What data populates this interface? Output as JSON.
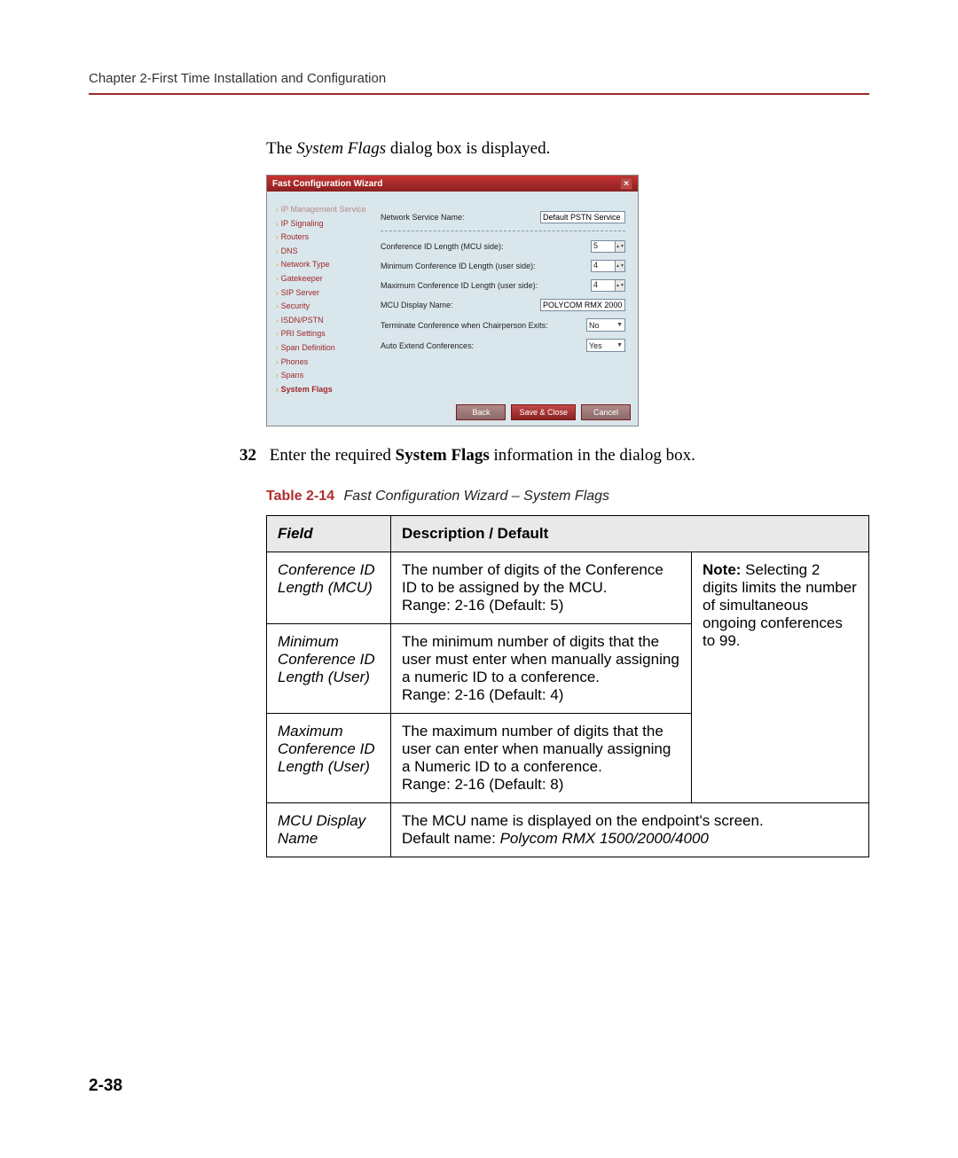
{
  "header": {
    "chapter": "Chapter 2-First Time Installation and Configuration"
  },
  "intro": {
    "pre": "The ",
    "italic": "System Flags",
    "post": " dialog box is displayed."
  },
  "dialog": {
    "title": "Fast Configuration Wizard",
    "close_label": "×",
    "sidebar": [
      {
        "label": "IP Management Service",
        "dim": true
      },
      {
        "label": "IP Signaling"
      },
      {
        "label": "Routers"
      },
      {
        "label": "DNS"
      },
      {
        "label": "Network Type"
      },
      {
        "label": "Gatekeeper"
      },
      {
        "label": "SIP Server"
      },
      {
        "label": "Security"
      },
      {
        "label": "ISDN/PSTN"
      },
      {
        "label": "PRI Settings"
      },
      {
        "label": "Span Definition"
      },
      {
        "label": "Phones"
      },
      {
        "label": "Spans"
      },
      {
        "label": "System Flags",
        "bold": true
      }
    ],
    "main": {
      "nsn_label": "Network Service Name:",
      "nsn_value": "Default PSTN Service",
      "conf_id_mcu_label": "Conference ID Length (MCU side):",
      "conf_id_mcu_value": "5",
      "min_conf_user_label": "Minimum Conference ID Length (user side):",
      "min_conf_user_value": "4",
      "max_conf_user_label": "Maximum Conference ID Length (user side):",
      "max_conf_user_value": "4",
      "mcu_display_label": "MCU Display Name:",
      "mcu_display_value": "POLYCOM RMX 2000",
      "term_chair_label": "Terminate Conference when Chairperson Exits:",
      "term_chair_value": "No",
      "auto_ext_label": "Auto Extend Conferences:",
      "auto_ext_value": "Yes"
    },
    "buttons": {
      "back": "Back",
      "save": "Save & Close",
      "cancel": "Cancel"
    }
  },
  "step": {
    "num": "32",
    "pre": "Enter the required ",
    "bold": "System Flags",
    "post": " information in the dialog box."
  },
  "table": {
    "caption_num": "Table 2-14",
    "caption_text": "Fast Configuration Wizard – System Flags",
    "headers": {
      "field": "Field",
      "desc": "Description / Default"
    },
    "rows": [
      {
        "field": "Conference ID Length (MCU)",
        "desc": "The number of digits of the Conference ID to be assigned by the MCU.\nRange: 2-16 (Default: 5)"
      },
      {
        "field": "Minimum Conference ID Length (User)",
        "desc": "The minimum number of digits that the user must enter when manually assigning a numeric ID to a conference.\nRange: 2-16 (Default: 4)"
      },
      {
        "field": "Maximum Conference ID Length (User)",
        "desc": "The maximum number of digits that the user can enter when manually assigning a Numeric ID to a conference.\nRange: 2-16 (Default: 8)"
      }
    ],
    "note": {
      "bold": "Note:",
      "text": " Selecting 2 digits limits the number of simultaneous ongoing conferences to 99."
    },
    "row4": {
      "field": "MCU Display Name",
      "desc_pre": "The MCU name is displayed on the endpoint's screen.\nDefault name: ",
      "desc_italic": "Polycom RMX 1500/2000/4000"
    }
  },
  "page_number": "2-38"
}
